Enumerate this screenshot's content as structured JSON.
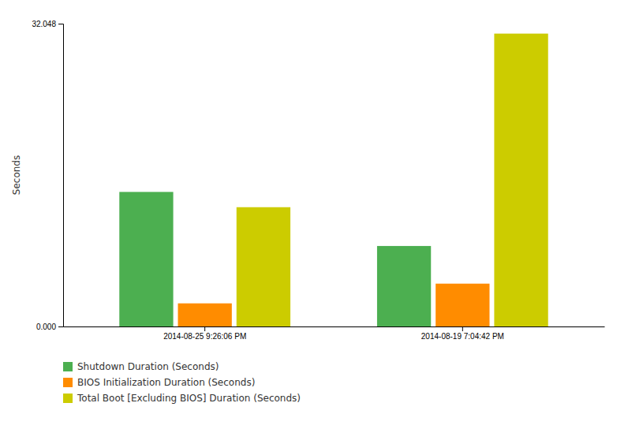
{
  "chart_data": {
    "type": "bar",
    "y_label": "Seconds",
    "categories": [
      "2014-08-25 9:26:06 PM",
      "2014-08-19 7:04:42 PM"
    ],
    "series": [
      {
        "name": "Shutdown Duration (Seconds)",
        "color": "#4caf50",
        "values": [
          14.24,
          8.519
        ]
      },
      {
        "name": "BIOS Initialization Duration (Seconds)",
        "color": "#ff8c00",
        "values": [
          2.447,
          4.533
        ]
      },
      {
        "name": "Total Boot [Excluding BIOS] Duration (Seconds)",
        "color": "#cccc00",
        "values": [
          12.623,
          30.995
        ]
      }
    ],
    "ylim": [
      0,
      32.048
    ],
    "yticks": [
      {
        "value": 0,
        "label": "0.000"
      },
      32.048
    ],
    "grid": false,
    "legend": "bottom"
  }
}
